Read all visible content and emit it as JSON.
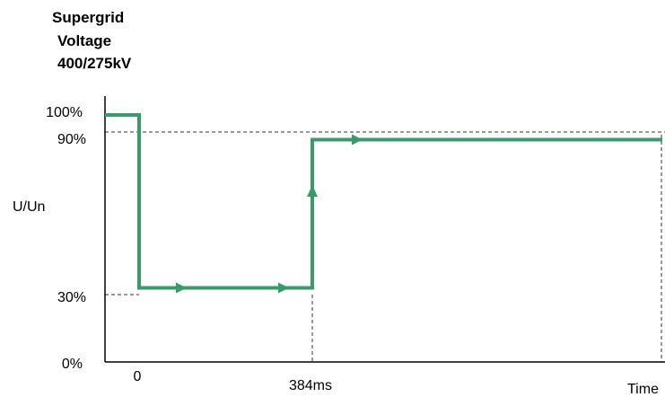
{
  "chart_data": {
    "type": "line",
    "title_lines": [
      "Supergrid",
      "Voltage",
      "400/275kV"
    ],
    "ylabel": "U/Un",
    "xlabel": "Time",
    "y_ticks": [
      "100%",
      "90%",
      "30%",
      "0%"
    ],
    "x_ticks": [
      "0",
      "384ms"
    ],
    "series": [
      {
        "color": "#3a9a6a",
        "points": [
          {
            "t": "pre",
            "u": 100
          },
          {
            "t": "0",
            "u": 100
          },
          {
            "t": "0",
            "u": 30
          },
          {
            "t": "384ms",
            "u": 30
          },
          {
            "t": "384ms",
            "u": 90
          },
          {
            "t": "end",
            "u": 90
          }
        ]
      }
    ]
  }
}
